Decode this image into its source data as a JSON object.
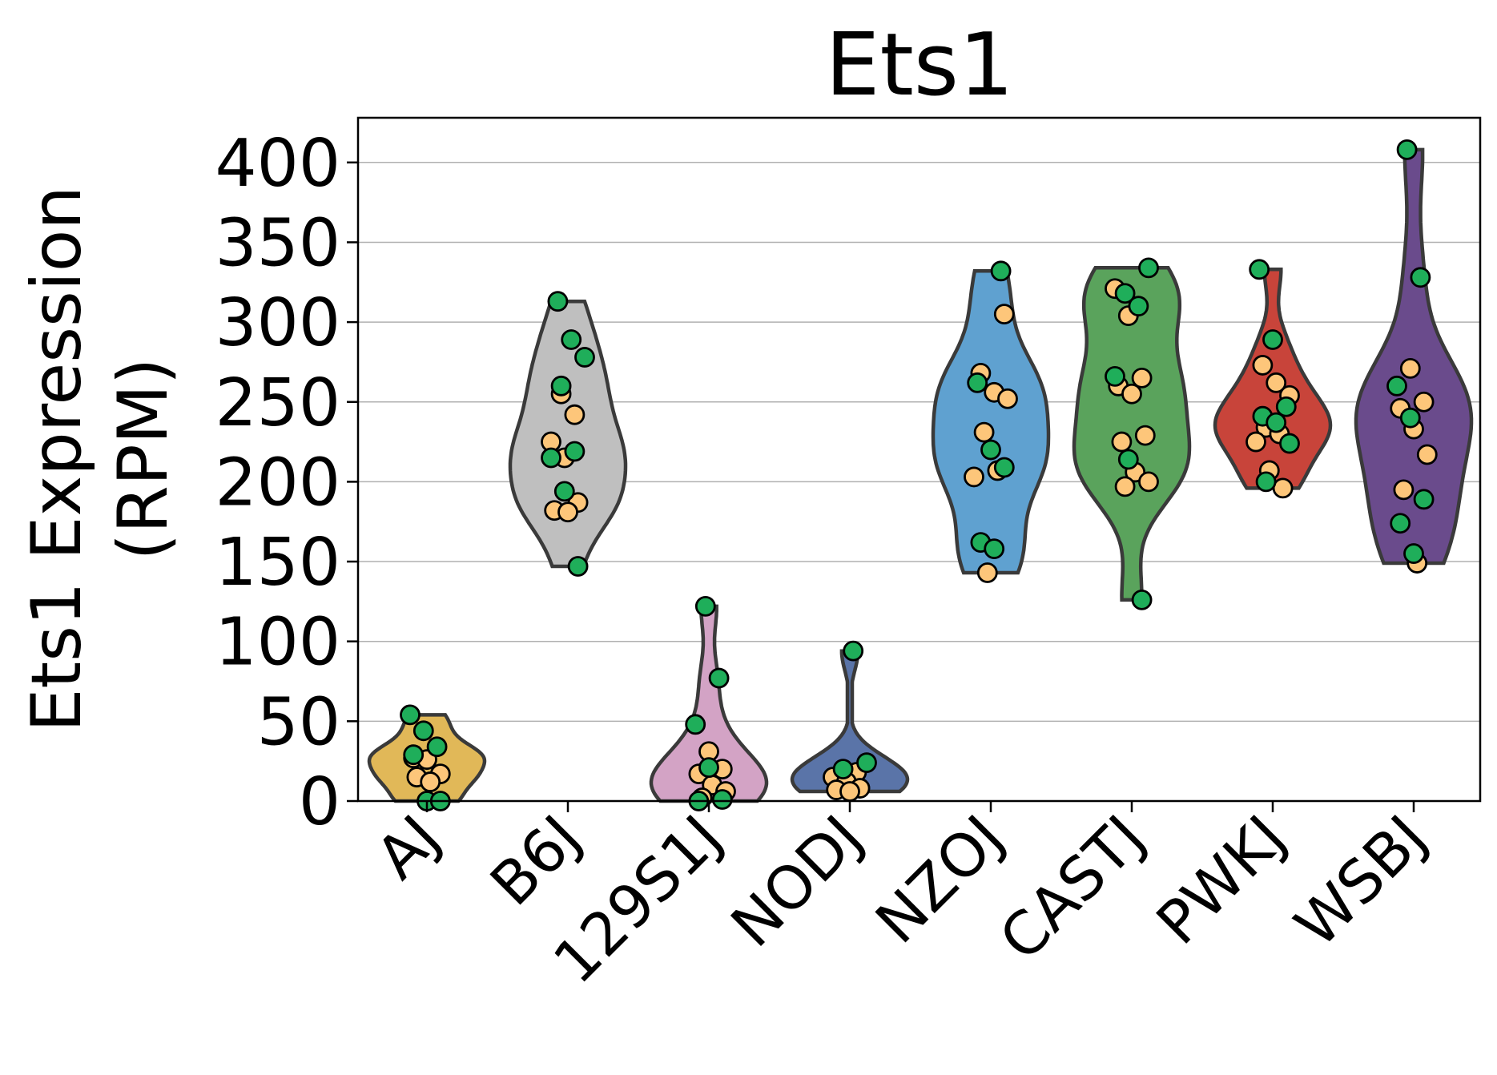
{
  "chart_data": {
    "type": "violin",
    "title": "Ets1",
    "ylabel_line1": "Ets1 Expression",
    "ylabel_line2": "(RPM)",
    "xlabel": "",
    "ylim": [
      0,
      428
    ],
    "yticks": [
      0,
      50,
      100,
      150,
      200,
      250,
      300,
      350,
      400
    ],
    "grid": "horizontal",
    "point_colors": {
      "green": "#1fae5a",
      "orange": "#fdc67a"
    },
    "categories": [
      "AJ",
      "B6J",
      "129S1J",
      "NODJ",
      "NZOJ",
      "CASTJ",
      "PWKJ",
      "WSBJ"
    ],
    "series": [
      {
        "name": "AJ",
        "color": "#e1b858",
        "green": [
          54,
          44,
          34,
          29,
          0,
          0
        ],
        "orange": [
          27,
          26,
          17,
          15,
          12
        ]
      },
      {
        "name": "B6J",
        "color": "#bfbfbf",
        "green": [
          313,
          289,
          278,
          260,
          219,
          215,
          194,
          147
        ],
        "orange": [
          255,
          242,
          225,
          215,
          187,
          182,
          181
        ]
      },
      {
        "name": "129S1J",
        "color": "#d3a3c5",
        "green": [
          122,
          77,
          48,
          21,
          1,
          0
        ],
        "orange": [
          31,
          20,
          17,
          10,
          6,
          2
        ]
      },
      {
        "name": "NODJ",
        "color": "#5a74a8",
        "green": [
          94,
          24,
          20
        ],
        "orange": [
          18,
          15,
          12,
          8,
          7,
          6
        ]
      },
      {
        "name": "NZOJ",
        "color": "#5fa1d0",
        "green": [
          332,
          262,
          220,
          209,
          162,
          158
        ],
        "orange": [
          305,
          268,
          256,
          252,
          231,
          207,
          203,
          143
        ]
      },
      {
        "name": "CASTJ",
        "color": "#5aa35c",
        "green": [
          334,
          318,
          310,
          266,
          214,
          126
        ],
        "orange": [
          321,
          304,
          265,
          260,
          255,
          229,
          225,
          206,
          200,
          197
        ]
      },
      {
        "name": "PWKJ",
        "color": "#c8443a",
        "green": [
          333,
          289,
          247,
          241,
          237,
          224,
          200
        ],
        "orange": [
          273,
          262,
          254,
          234,
          230,
          225,
          207,
          196
        ]
      },
      {
        "name": "WSBJ",
        "color": "#6a4b8c",
        "green": [
          408,
          328,
          260,
          240,
          189,
          174,
          155
        ],
        "orange": [
          271,
          250,
          246,
          233,
          217,
          195,
          149
        ]
      }
    ]
  }
}
